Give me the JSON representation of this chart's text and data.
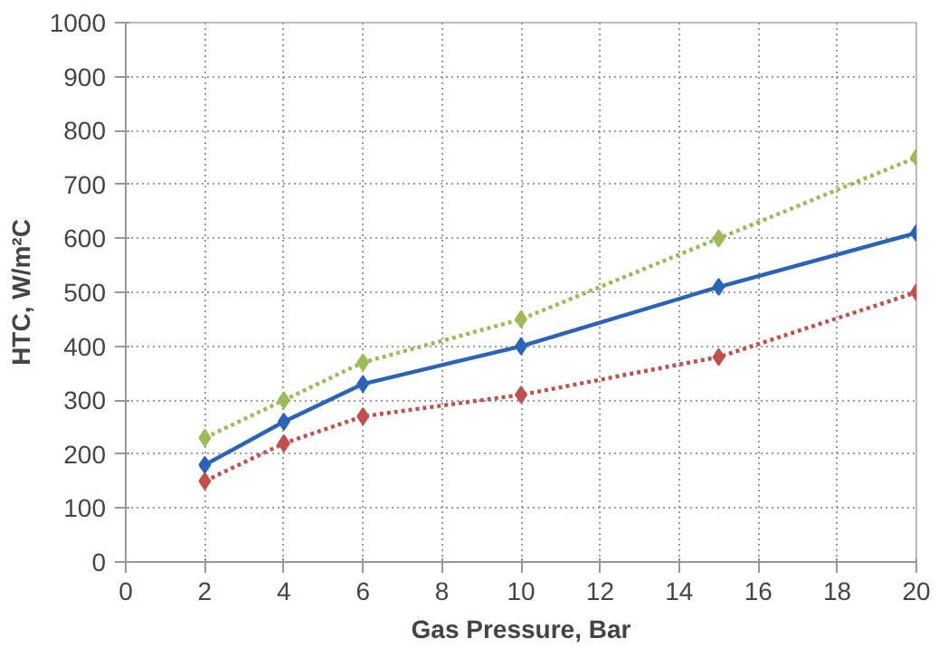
{
  "chart_data": {
    "type": "line",
    "xlabel": "Gas Pressure, Bar",
    "ylabel": "HTC, W/m²C",
    "x": [
      2,
      4,
      6,
      10,
      15,
      20
    ],
    "series": [
      {
        "color": "#9bbb59",
        "line_style": "dotted",
        "values": [
          230,
          300,
          370,
          450,
          600,
          750
        ]
      },
      {
        "color": "#2a63b8",
        "line_style": "solid",
        "values": [
          180,
          260,
          330,
          400,
          510,
          610
        ]
      },
      {
        "color": "#c0504d",
        "line_style": "dotted",
        "values": [
          150,
          220,
          270,
          310,
          380,
          500
        ]
      }
    ],
    "xlim": [
      0,
      20
    ],
    "ylim": [
      0,
      1000
    ],
    "xticks": [
      0,
      2,
      4,
      6,
      8,
      10,
      12,
      14,
      16,
      18,
      20
    ],
    "yticks": [
      0,
      100,
      200,
      300,
      400,
      500,
      600,
      700,
      800,
      900,
      1000
    ],
    "grid": true,
    "marker": "diamond"
  }
}
